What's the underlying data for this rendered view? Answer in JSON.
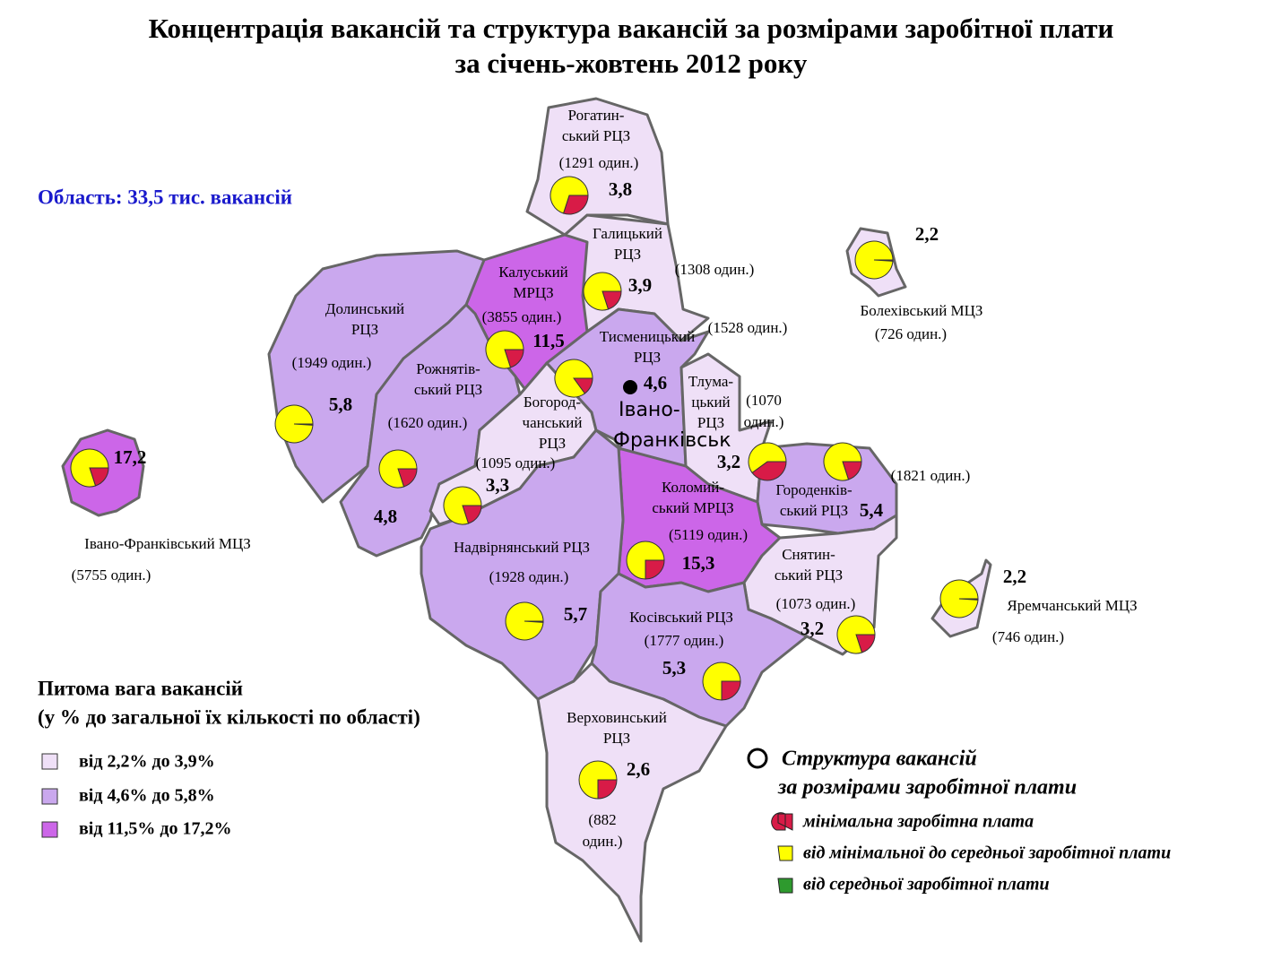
{
  "title": [
    "Концентрація вакансій та структура вакансій за розмірами заробітної плати",
    "за січень-жовтень 2012 року"
  ],
  "oblast": "Область: 33,5 тис. вакансій",
  "city": [
    "Івано-",
    "Франківськ"
  ],
  "share_legend": {
    "title": [
      "Питома вага вакансій",
      "(у % до загальної їх кількості по області)"
    ],
    "items": [
      "від 2,2% до 3,9%",
      "від 4,6% до 5,8%",
      "від 11,5% до 17,2%"
    ]
  },
  "structure_legend": {
    "title": [
      "Структура вакансій",
      "за розмірами заробітної плати"
    ],
    "items": [
      "мінімальна заробітна плата",
      "від мінімальної до середньої заробітної плати",
      "від середньої заробітної плати"
    ]
  },
  "regions": [
    {
      "name": [
        "Рогатин-",
        "ський РЦЗ"
      ],
      "count": [
        "(1291 один.)"
      ],
      "share": "3,8",
      "pie": [
        30,
        70
      ]
    },
    {
      "name": [
        "Галицький",
        "РЦЗ"
      ],
      "count": [
        "(1308 один.)"
      ],
      "share": "3,9",
      "pie": [
        20,
        80
      ]
    },
    {
      "name": [
        "Калуський",
        "МРЦЗ"
      ],
      "count": [
        "(3855 один.)"
      ],
      "share": "11,5",
      "pie": [
        20,
        80
      ]
    },
    {
      "name": [
        "Долинський",
        "РЦЗ"
      ],
      "count": [
        "(1949 один.)"
      ],
      "share": "5,8",
      "pie": [
        1,
        99
      ]
    },
    {
      "name": [
        "Рожнятів-",
        "ський РЦЗ"
      ],
      "count": [
        "(1620 один.)"
      ],
      "share": "4,8",
      "pie": [
        20,
        80
      ]
    },
    {
      "name": [
        "Тисменицький",
        "РЦЗ"
      ],
      "count": [
        "(1528 один.)"
      ],
      "share": "4,6",
      "pie": [
        15,
        85
      ]
    },
    {
      "name": [
        "Богород-",
        "чанський",
        "РЦЗ"
      ],
      "count": [
        "(1095 один.)"
      ],
      "share": "3,3",
      "pie": [
        20,
        80
      ]
    },
    {
      "name": [
        "Тлума-",
        "цький",
        "РЦЗ"
      ],
      "count": [
        "(1070",
        "один.)"
      ],
      "share": "3,2",
      "pie": [
        40,
        60
      ]
    },
    {
      "name": [
        "Городенків-",
        "ський РЦЗ"
      ],
      "count": [
        "(1821 один.)"
      ],
      "share": "5,4",
      "pie": [
        20,
        80
      ]
    },
    {
      "name": [
        "Коломий-",
        "ський МРЦЗ"
      ],
      "count": [
        "(5119 один.)"
      ],
      "share": "15,3",
      "pie": [
        25,
        75
      ]
    },
    {
      "name": [
        "Надвірнянський РЦЗ"
      ],
      "count": [
        "(1928 один.)"
      ],
      "share": "5,7",
      "pie": [
        1,
        99
      ]
    },
    {
      "name": [
        "Снятин-",
        "ський РЦЗ"
      ],
      "count": [
        "(1073 один.)"
      ],
      "share": "3,2",
      "pie": [
        20,
        80
      ]
    },
    {
      "name": [
        "Косівський РЦЗ"
      ],
      "count": [
        "(1777 один.)"
      ],
      "share": "5,3",
      "pie": [
        25,
        75
      ]
    },
    {
      "name": [
        "Верховинський",
        "РЦЗ"
      ],
      "count": [
        "(882",
        "один.)"
      ],
      "share": "2,6",
      "pie": [
        25,
        75
      ]
    },
    {
      "name": [
        "Болехівський МЦЗ"
      ],
      "count": [
        "(726 один.)"
      ],
      "share": "2,2",
      "pie": [
        1,
        99
      ]
    },
    {
      "name": [
        "Яремчанський МЦЗ"
      ],
      "count": [
        "(746 один.)"
      ],
      "share": "2,2",
      "pie": [
        1,
        99
      ]
    },
    {
      "name": [
        "Івано-Франківський МЦЗ"
      ],
      "count": [
        "(5755 один.)"
      ],
      "share": "17,2",
      "pie": [
        20,
        80
      ]
    }
  ]
}
